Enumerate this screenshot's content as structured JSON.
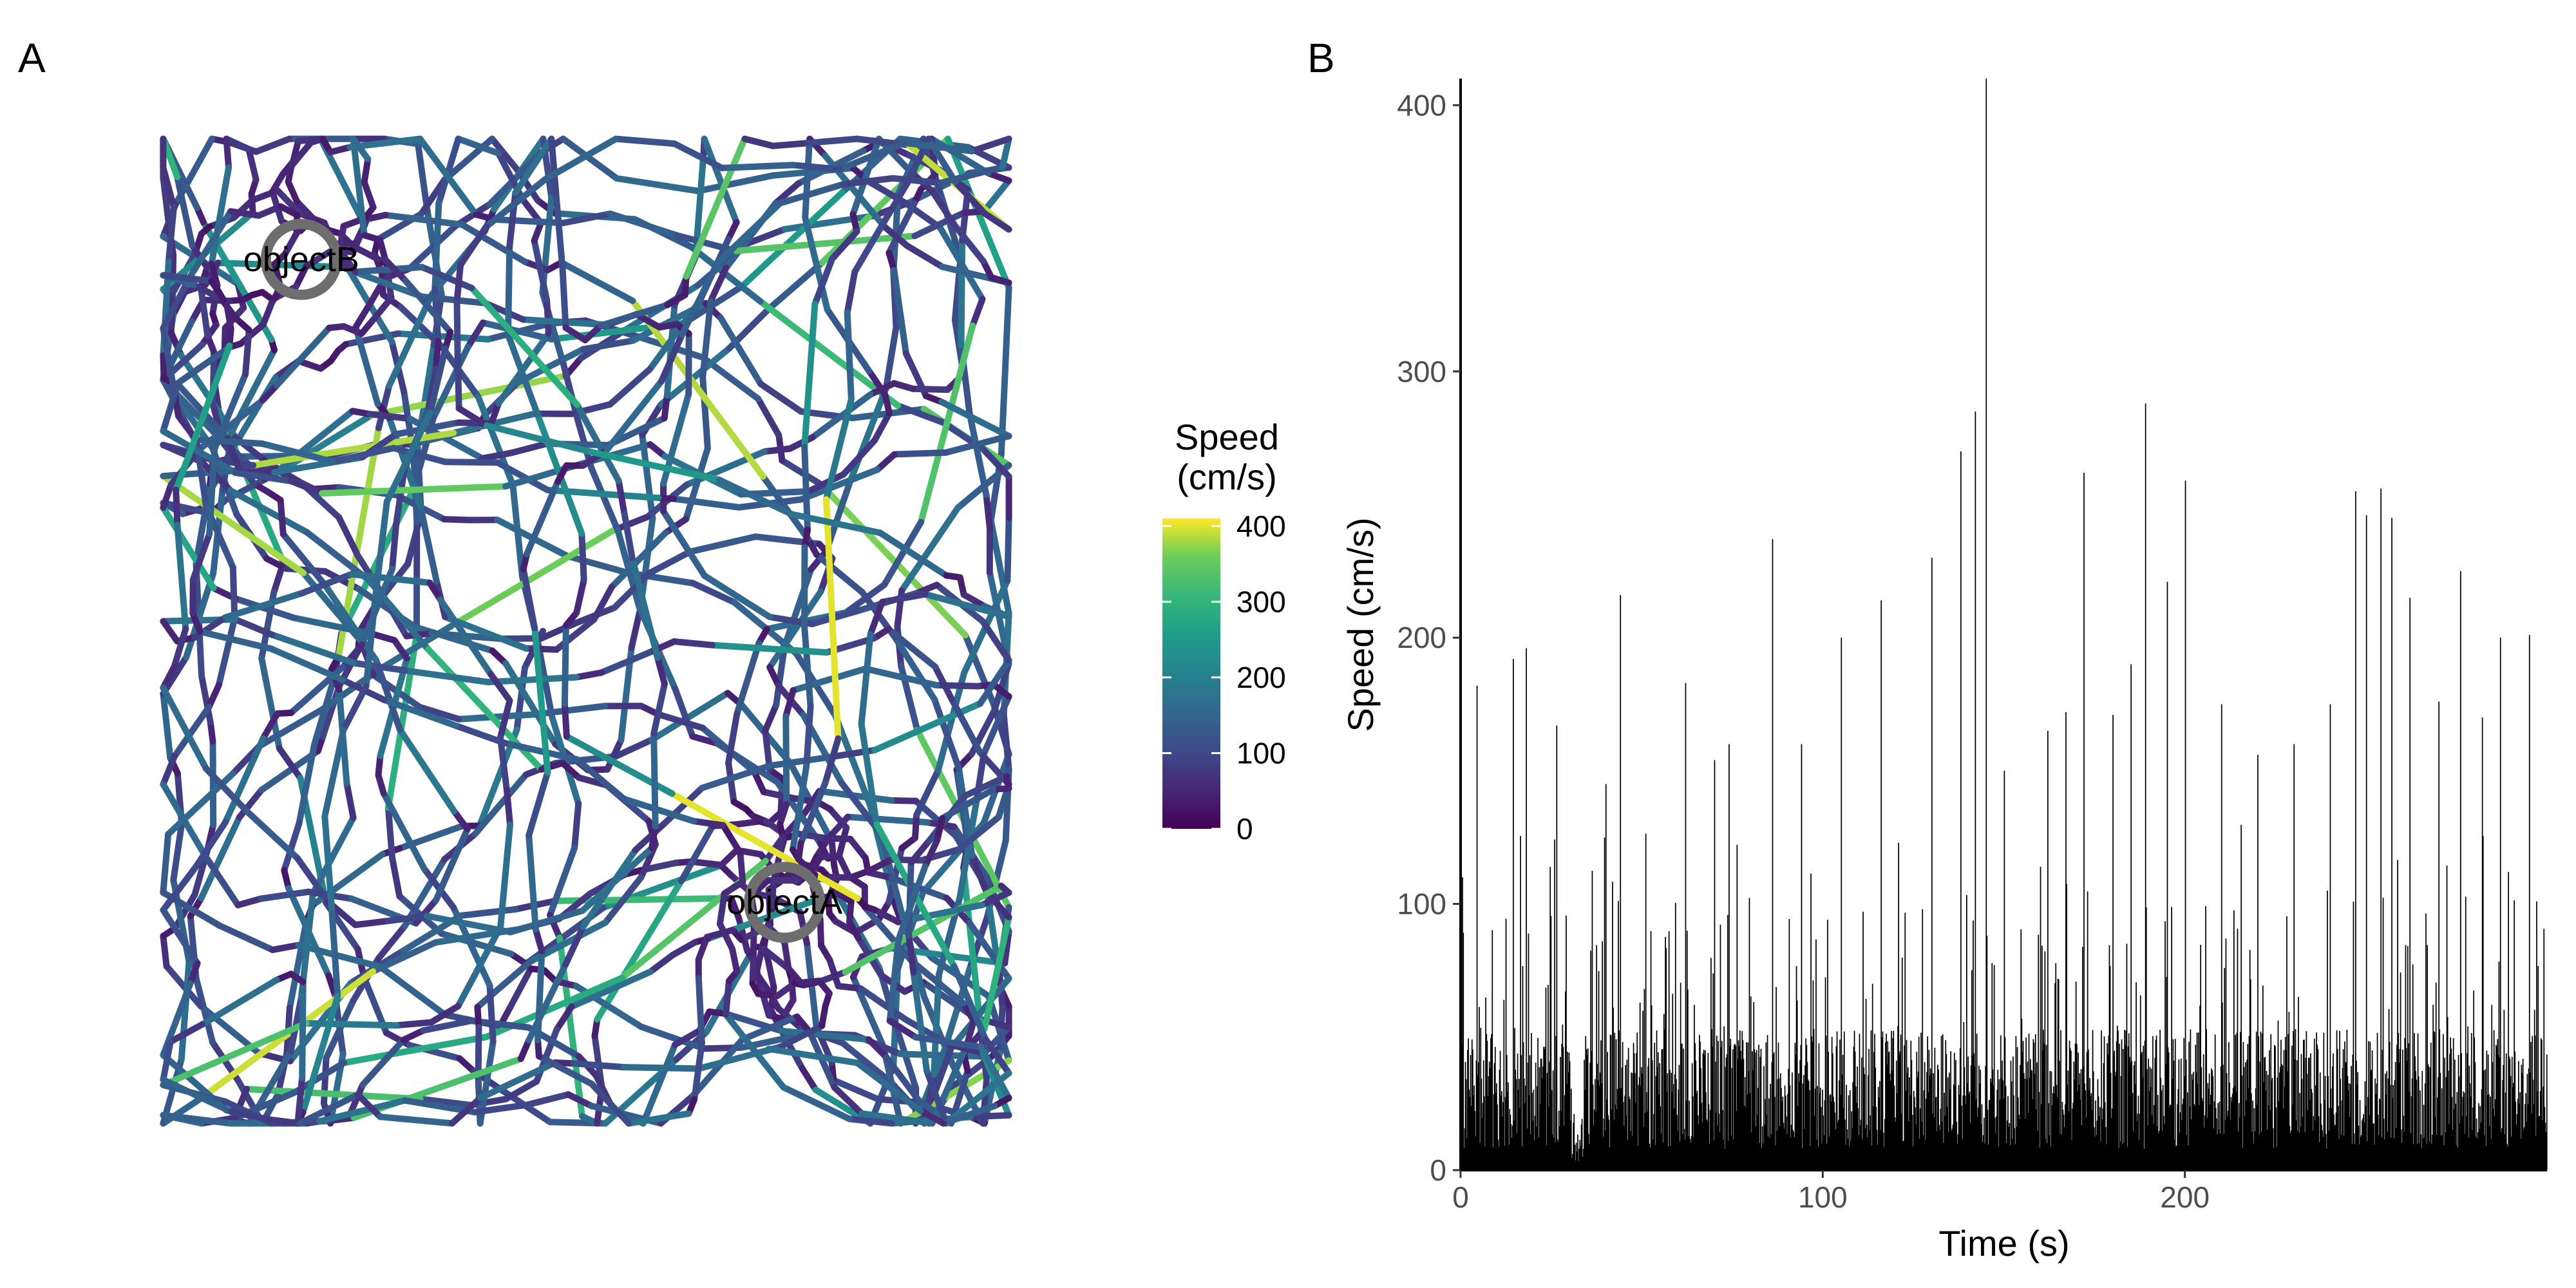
{
  "figure": {
    "panel_a_tag": "A",
    "panel_b_tag": "B"
  },
  "chart_data": [
    {
      "type": "path",
      "panel": "A",
      "color_by": "speed",
      "colorscale": "viridis",
      "colors": {
        "low": "#440154",
        "mid": "#21918c",
        "high": "#fde725"
      },
      "legend": {
        "title_line1": "Speed",
        "title_line2": "(cm/s)",
        "range": [
          0,
          410
        ],
        "ticks": [
          0,
          100,
          200,
          300,
          400
        ],
        "placement": "right"
      },
      "objects": [
        {
          "label": "objectA",
          "x": 0.73,
          "y": 0.23
        },
        {
          "label": "objectB",
          "x": 0.17,
          "y": 0.87
        }
      ],
      "xlim": [
        0,
        1
      ],
      "ylim": [
        0,
        1
      ],
      "grid": false,
      "axes_visible": false
    },
    {
      "type": "bar",
      "panel": "B",
      "xlabel": "Time (s)",
      "ylabel": "Speed (cm/s)",
      "xlim": [
        0,
        300
      ],
      "ylim": [
        0,
        410
      ],
      "xticks": [
        0,
        100,
        200
      ],
      "yticks": [
        0,
        100,
        200,
        300,
        400
      ],
      "grid": false,
      "bar_color": "#000000",
      "peaks": [
        {
          "t": 0.5,
          "v": 110
        },
        {
          "t": 4.5,
          "v": 182
        },
        {
          "t": 14.5,
          "v": 192
        },
        {
          "t": 18,
          "v": 196
        },
        {
          "t": 26.5,
          "v": 167
        },
        {
          "t": 40,
          "v": 145
        },
        {
          "t": 44,
          "v": 216
        },
        {
          "t": 62,
          "v": 183
        },
        {
          "t": 70,
          "v": 154
        },
        {
          "t": 74,
          "v": 160
        },
        {
          "t": 86,
          "v": 237
        },
        {
          "t": 94,
          "v": 160
        },
        {
          "t": 105,
          "v": 200
        },
        {
          "t": 116,
          "v": 214
        },
        {
          "t": 130,
          "v": 230
        },
        {
          "t": 138,
          "v": 270
        },
        {
          "t": 142,
          "v": 285
        },
        {
          "t": 145,
          "v": 410
        },
        {
          "t": 150,
          "v": 150
        },
        {
          "t": 162,
          "v": 165
        },
        {
          "t": 167,
          "v": 172
        },
        {
          "t": 172,
          "v": 262
        },
        {
          "t": 180,
          "v": 171
        },
        {
          "t": 185,
          "v": 190
        },
        {
          "t": 189,
          "v": 288
        },
        {
          "t": 195,
          "v": 221
        },
        {
          "t": 200,
          "v": 259
        },
        {
          "t": 210,
          "v": 175
        },
        {
          "t": 220,
          "v": 156
        },
        {
          "t": 230,
          "v": 160
        },
        {
          "t": 240,
          "v": 175
        },
        {
          "t": 247,
          "v": 255
        },
        {
          "t": 250,
          "v": 246
        },
        {
          "t": 254,
          "v": 256
        },
        {
          "t": 257,
          "v": 245
        },
        {
          "t": 262,
          "v": 215
        },
        {
          "t": 270,
          "v": 176
        },
        {
          "t": 276,
          "v": 225
        },
        {
          "t": 282,
          "v": 170
        },
        {
          "t": 287,
          "v": 200
        },
        {
          "t": 295,
          "v": 201
        }
      ]
    }
  ]
}
